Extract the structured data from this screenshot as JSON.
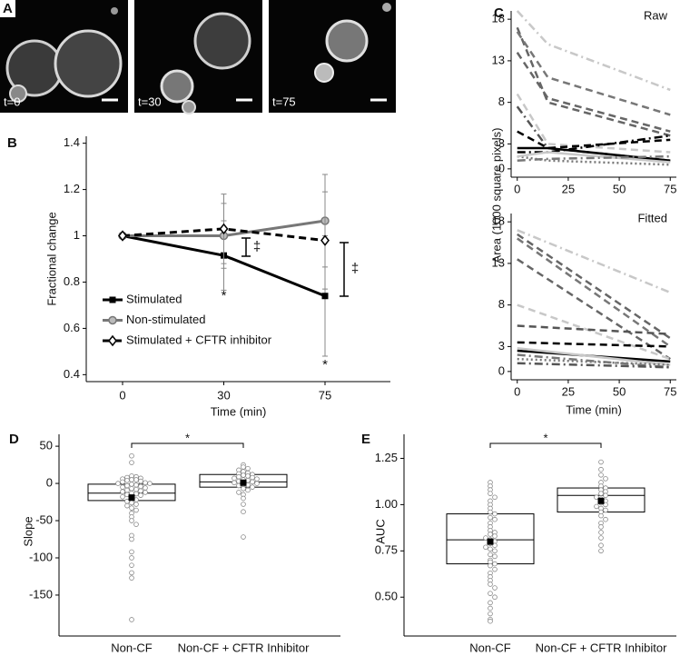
{
  "panel_labels": [
    "A",
    "B",
    "C",
    "D",
    "E"
  ],
  "images": [
    "t=0",
    "t=30",
    "t=75"
  ],
  "chart_data": [
    {
      "type": "line",
      "xlabel": "Time (min)",
      "ylabel": "Fractional change",
      "categories": [
        "0",
        "30",
        "75"
      ],
      "ylim": [
        0.37,
        1.43
      ],
      "yticks": [
        0.4,
        0.6,
        0.8,
        1,
        1.2,
        1.4
      ],
      "legend": "lower left",
      "series": [
        {
          "name": "Stimulated",
          "color": "#000000",
          "dash": "solid",
          "marker": "square",
          "values": [
            1,
            0.915,
            0.74
          ],
          "errors": [
            0,
            0.15,
            0.26
          ]
        },
        {
          "name": "Non-stimulated",
          "color": "#777777",
          "dash": "solid",
          "marker": "circle",
          "values": [
            1,
            1.0,
            1.065
          ],
          "errors": [
            0,
            0.14,
            0.2
          ]
        },
        {
          "name": "Stimulated + CFTR inhibitor",
          "color": "#000000",
          "dash": "dashed",
          "marker": "diamond",
          "values": [
            1,
            1.03,
            0.98
          ],
          "errors": [
            0,
            0.15,
            0.21
          ]
        }
      ],
      "annotations": [
        "*",
        "*",
        "‡",
        "‡"
      ]
    },
    {
      "type": "line",
      "title": "Raw",
      "ylabel": "Area (1000 square pixels)",
      "x": [
        0,
        15,
        75
      ],
      "xlim": [
        -3,
        78
      ],
      "xticks": [
        0,
        25,
        50,
        75
      ],
      "ylim": [
        -1,
        19
      ],
      "yticks": [
        0,
        3,
        8,
        13,
        18
      ],
      "series": [
        {
          "color": "#c8c8c8",
          "dash": "dashdot",
          "values": [
            19,
            15,
            9.5
          ]
        },
        {
          "color": "#666666",
          "dash": "dashed",
          "values": [
            17,
            8,
            4
          ]
        },
        {
          "color": "#777777",
          "dash": "dashed",
          "values": [
            16.5,
            11,
            6.5
          ]
        },
        {
          "color": "#666666",
          "dash": "dashed",
          "values": [
            14,
            8.5,
            4.5
          ]
        },
        {
          "color": "#c8c8c8",
          "dash": "dashed",
          "values": [
            9,
            3,
            2
          ]
        },
        {
          "color": "#555555",
          "dash": "dashdot",
          "values": [
            7.5,
            2.5,
            1
          ]
        },
        {
          "color": "#000000",
          "dash": "dashed",
          "values": [
            4.5,
            2.5,
            3.5
          ]
        },
        {
          "color": "#000000",
          "dash": "solid",
          "values": [
            2.5,
            2.5,
            1
          ]
        },
        {
          "color": "#000000",
          "dash": "dashdot",
          "values": [
            2,
            2,
            4
          ]
        },
        {
          "color": "#777777",
          "dash": "dotted",
          "values": [
            1.5,
            1,
            0.5
          ]
        },
        {
          "color": "#c8c8c8",
          "dash": "solid",
          "values": [
            1.5,
            2,
            0.8
          ]
        },
        {
          "color": "#777777",
          "dash": "dashdot",
          "values": [
            1,
            1.2,
            1.5
          ]
        }
      ]
    },
    {
      "type": "line",
      "title": "Fitted",
      "xlabel": "Time (min)",
      "x": [
        0,
        75
      ],
      "xlim": [
        -3,
        78
      ],
      "xticks": [
        0,
        25,
        50,
        75
      ],
      "ylim": [
        -1,
        19
      ],
      "yticks": [
        0,
        3,
        8,
        13,
        18
      ],
      "series": [
        {
          "color": "#c8c8c8",
          "dash": "dashdot",
          "values": [
            17,
            9.5
          ]
        },
        {
          "color": "#666666",
          "dash": "dashed",
          "values": [
            16.5,
            4
          ]
        },
        {
          "color": "#777777",
          "dash": "dashed",
          "values": [
            16,
            3
          ]
        },
        {
          "color": "#666666",
          "dash": "dashed",
          "values": [
            13.5,
            1.5
          ]
        },
        {
          "color": "#c8c8c8",
          "dash": "dashed",
          "values": [
            8,
            1.5
          ]
        },
        {
          "color": "#555555",
          "dash": "dashed",
          "values": [
            5.5,
            4.5
          ]
        },
        {
          "color": "#000000",
          "dash": "dashed",
          "values": [
            3.5,
            3
          ]
        },
        {
          "color": "#000000",
          "dash": "solid",
          "values": [
            2.5,
            1.2
          ]
        },
        {
          "color": "#c8c8c8",
          "dash": "solid",
          "values": [
            2.8,
            0.8
          ]
        },
        {
          "color": "#777777",
          "dash": "dashdot",
          "values": [
            2,
            0.5
          ]
        },
        {
          "color": "#777777",
          "dash": "dotted",
          "values": [
            1.5,
            0.8
          ]
        },
        {
          "color": "#555555",
          "dash": "dashdot",
          "values": [
            1,
            0.5
          ]
        }
      ]
    },
    {
      "type": "box",
      "ylabel": "Slope",
      "categories": [
        "Non-CF",
        "Non-CF + CFTR Inhibitor"
      ],
      "ylim": [
        -205,
        66
      ],
      "yticks": [
        50,
        0,
        -50,
        -100,
        -150
      ],
      "annotation": "*",
      "groups": [
        {
          "q1": -23,
          "median": -13,
          "q3": -1,
          "mean": -19,
          "points": [
            37,
            28,
            10,
            9,
            8,
            7,
            6,
            5,
            5,
            4,
            3,
            2,
            1,
            0,
            0,
            -1,
            -2,
            -3,
            -4,
            -5,
            -6,
            -7,
            -8,
            -9,
            -10,
            -11,
            -12,
            -13,
            -14,
            -15,
            -16,
            -18,
            -20,
            -22,
            -24,
            -26,
            -28,
            -30,
            -33,
            -36,
            -40,
            -45,
            -50,
            -55,
            -70,
            -75,
            -92,
            -100,
            -110,
            -120,
            -127,
            -183
          ]
        },
        {
          "q1": -5,
          "median": 2,
          "q3": 12,
          "mean": 1,
          "points": [
            25,
            22,
            20,
            18,
            16,
            14,
            13,
            12,
            11,
            10,
            9,
            8,
            7,
            6,
            5,
            4,
            3,
            2,
            1,
            0,
            -1,
            -2,
            -3,
            -5,
            -7,
            -9,
            -12,
            -15,
            -20,
            -28,
            -38,
            -72
          ]
        }
      ]
    },
    {
      "type": "box",
      "ylabel": "AUC",
      "categories": [
        "Non-CF",
        "Non-CF + CFTR Inhibitor"
      ],
      "ylim": [
        0.29,
        1.38
      ],
      "yticks": [
        {
          "value": 0.5,
          "label": "0.50"
        },
        0.75,
        {
          "value": 1,
          "label": "1.00"
        },
        1.25
      ],
      "annotation": "*",
      "groups": [
        {
          "q1": 0.68,
          "median": 0.81,
          "q3": 0.95,
          "mean": 0.8,
          "points": [
            1.12,
            1.1,
            1.08,
            1.06,
            1.04,
            1.02,
            1.0,
            0.98,
            0.96,
            0.95,
            0.93,
            0.92,
            0.9,
            0.88,
            0.86,
            0.85,
            0.84,
            0.83,
            0.82,
            0.81,
            0.8,
            0.79,
            0.78,
            0.77,
            0.76,
            0.75,
            0.73,
            0.72,
            0.7,
            0.69,
            0.68,
            0.67,
            0.65,
            0.63,
            0.61,
            0.59,
            0.57,
            0.55,
            0.52,
            0.5,
            0.47,
            0.44,
            0.41,
            0.38,
            0.37
          ]
        },
        {
          "q1": 0.96,
          "median": 1.05,
          "q3": 1.09,
          "mean": 1.02,
          "points": [
            1.23,
            1.19,
            1.16,
            1.14,
            1.12,
            1.1,
            1.09,
            1.08,
            1.07,
            1.06,
            1.05,
            1.04,
            1.03,
            1.02,
            1.01,
            1.0,
            0.99,
            0.98,
            0.97,
            0.96,
            0.94,
            0.92,
            0.9,
            0.88,
            0.85,
            0.82,
            0.78,
            0.75
          ]
        }
      ]
    }
  ]
}
